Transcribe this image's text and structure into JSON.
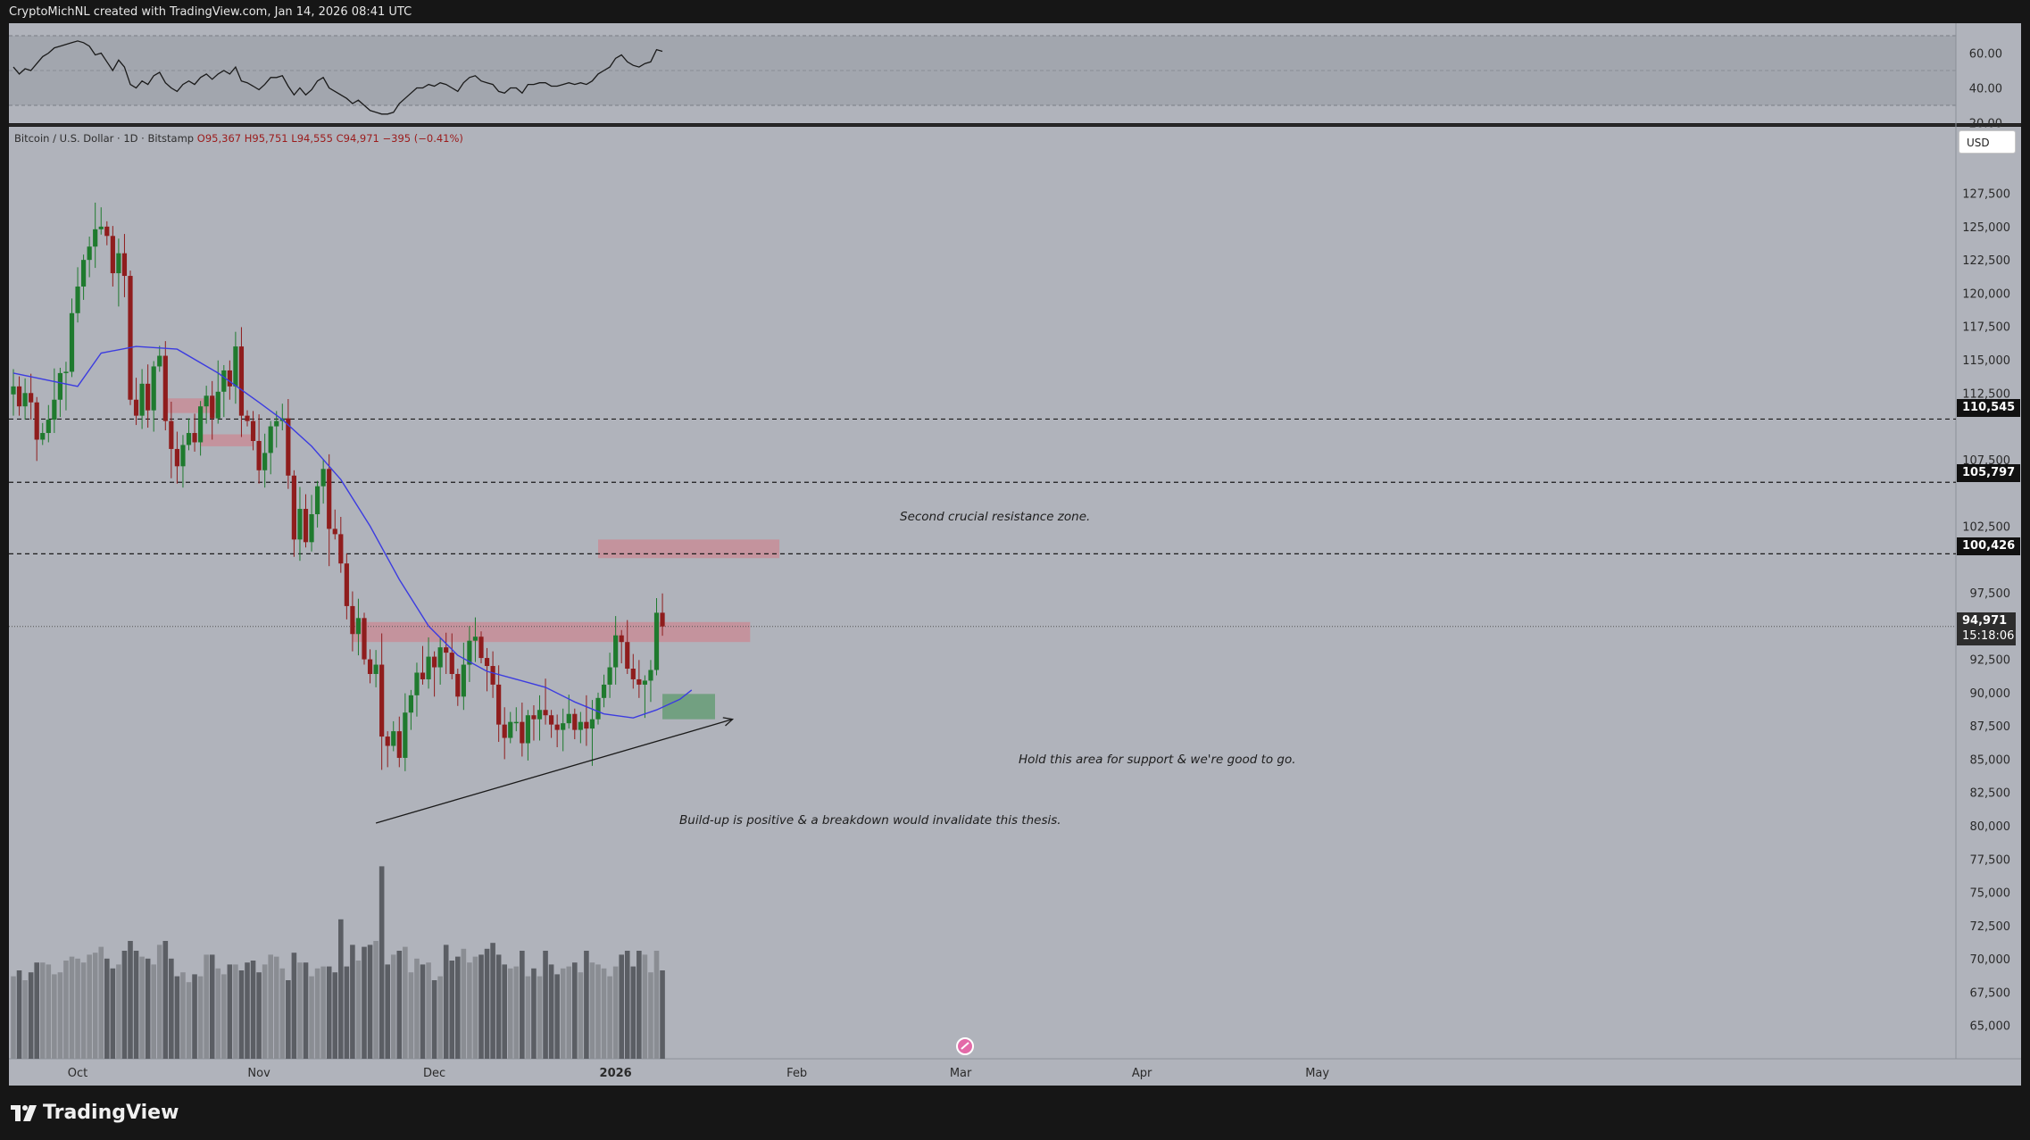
{
  "header": {
    "credit": "CryptoMichNL created with TradingView.com, Jan 14, 2026 08:41 UTC"
  },
  "legend": {
    "symbol": "Bitcoin / U.S. Dollar · 1D · Bitstamp",
    "open": "O95,367",
    "high": "H95,751",
    "low": "L94,555",
    "close": "C94,971",
    "change": "−395 (−0.41%)"
  },
  "currency": "USD",
  "branding": {
    "name": "TradingView"
  },
  "annotations": {
    "resistance": "Second crucial resistance zone.",
    "support": "Hold this area for support & we're good to go.",
    "thesis": "Build-up is positive & a breakdown would invalidate this thesis."
  },
  "price_tags": {
    "last_price": "94,971",
    "countdown": "15:18:06",
    "line1": "110,545",
    "line2": "105,797",
    "line3": "100,426"
  },
  "colors": {
    "bull": "#1f7a2e",
    "bear": "#8f1d1d",
    "ma": "#3c3ce0",
    "zone": "#c98b96",
    "support_zone": "#5e9a6e",
    "pane_bg": "#b0b3bb"
  },
  "chart_data": {
    "type": "candlestick",
    "title": "",
    "ylabel": "",
    "ylim": [
      62500,
      132500
    ],
    "price_ticks": [
      65000,
      67500,
      70000,
      72500,
      75000,
      77500,
      80000,
      82500,
      85000,
      87500,
      90000,
      92500,
      97500,
      102500,
      107500,
      112500,
      115000,
      117500,
      120000,
      122500,
      125000,
      127500
    ],
    "price_tick_labels": [
      "65,000",
      "67,500",
      "70,000",
      "72,500",
      "75,000",
      "77,500",
      "80,000",
      "82,500",
      "85,000",
      "87,500",
      "90,000",
      "92,500",
      "97,500",
      "102,500",
      "107,500",
      "112,500",
      "115,000",
      "117,500",
      "120,000",
      "122,500",
      "125,000",
      "127,500"
    ],
    "x_labels": [
      "Oct",
      "Nov",
      "Dec",
      "2026",
      "Feb",
      "Mar",
      "Apr",
      "May"
    ],
    "x_label_dates": [
      "2025-10-01",
      "2025-11-01",
      "2025-12-01",
      "2026-01-01",
      "2026-02-01",
      "2026-03-01",
      "2026-04-01",
      "2026-05-01"
    ],
    "close_series": {
      "start_date": "2025-09-20",
      "values": [
        113000,
        111500,
        112500,
        111800,
        109000,
        109500,
        110500,
        112000,
        114000,
        114100,
        118500,
        120500,
        122500,
        123500,
        124800,
        125000,
        124300,
        121500,
        123000,
        121300,
        112000,
        110800,
        113200,
        111200,
        114500,
        115300,
        110400,
        108300,
        107000,
        108600,
        109500,
        108800,
        111500,
        112300,
        110600,
        112600,
        114200,
        113000,
        116000,
        110800,
        110400,
        108900,
        106700,
        108000,
        110000,
        110400,
        110600,
        106300,
        101500,
        103800,
        101300,
        103400,
        105500,
        106800,
        102300,
        101900,
        99700,
        96500,
        94400,
        95600,
        92500,
        91400,
        92100,
        86700,
        86000,
        87100,
        85100,
        88500,
        89800,
        91500,
        91000,
        92700,
        91900,
        93400,
        93000,
        91400,
        89700,
        92100,
        93900,
        94200,
        92600,
        92000,
        90600,
        87600,
        86600,
        87800,
        87800,
        86200,
        88300,
        88000,
        88700,
        88300,
        87600,
        87200,
        87700,
        88400,
        87200,
        87800,
        87300,
        88000,
        89600,
        90600,
        91900,
        94300,
        93800,
        91800,
        91000,
        90600,
        90900,
        91700,
        96000,
        94971
      ]
    },
    "volume_series": {
      "values": [
        42,
        45,
        40,
        44,
        49,
        49,
        48,
        43,
        44,
        50,
        52,
        51,
        49,
        53,
        54,
        57,
        51,
        46,
        48,
        55,
        60,
        55,
        52,
        51,
        48,
        58,
        60,
        51,
        42,
        44,
        39,
        43,
        42,
        53,
        53,
        46,
        43,
        48,
        48,
        45,
        49,
        50,
        44,
        48,
        53,
        52,
        46,
        40,
        54,
        49,
        49,
        42,
        46,
        47,
        47,
        44,
        71,
        47,
        58,
        50,
        57,
        58,
        60,
        98,
        48,
        53,
        55,
        57,
        44,
        51,
        48,
        49,
        40,
        42,
        58,
        50,
        52,
        56,
        49,
        52,
        53,
        56,
        59,
        53,
        48,
        46,
        47,
        55,
        42,
        46,
        42,
        55,
        48,
        43,
        46,
        47,
        49,
        44,
        55,
        49,
        48,
        46,
        42,
        47,
        53,
        55,
        47,
        55,
        53,
        44,
        55,
        45
      ]
    },
    "moving_average": [
      {
        "date": "2025-09-20",
        "value": 114000
      },
      {
        "date": "2025-10-01",
        "value": 113000
      },
      {
        "date": "2025-10-05",
        "value": 115500
      },
      {
        "date": "2025-10-11",
        "value": 116000
      },
      {
        "date": "2025-10-18",
        "value": 115800
      },
      {
        "date": "2025-10-25",
        "value": 114000
      },
      {
        "date": "2025-11-01",
        "value": 111800
      },
      {
        "date": "2025-11-05",
        "value": 110500
      },
      {
        "date": "2025-11-10",
        "value": 108500
      },
      {
        "date": "2025-11-15",
        "value": 106000
      },
      {
        "date": "2025-11-20",
        "value": 102500
      },
      {
        "date": "2025-11-25",
        "value": 98500
      },
      {
        "date": "2025-11-30",
        "value": 95000
      },
      {
        "date": "2025-12-05",
        "value": 92800
      },
      {
        "date": "2025-12-10",
        "value": 91600
      },
      {
        "date": "2025-12-15",
        "value": 91000
      },
      {
        "date": "2025-12-20",
        "value": 90400
      },
      {
        "date": "2025-12-25",
        "value": 89300
      },
      {
        "date": "2025-12-30",
        "value": 88400
      },
      {
        "date": "2026-01-04",
        "value": 88100
      },
      {
        "date": "2026-01-08",
        "value": 88700
      },
      {
        "date": "2026-01-12",
        "value": 89500
      },
      {
        "date": "2026-01-14",
        "value": 90200
      }
    ],
    "horizontal_lines": [
      110545,
      105797,
      100426
    ],
    "last_price": 94971,
    "zones": [
      {
        "from": "2025-10-16",
        "to": "2025-10-25",
        "low": 111000,
        "high": 112100
      },
      {
        "from": "2025-10-22",
        "to": "2025-10-31",
        "low": 108500,
        "high": 109400
      },
      {
        "from": "2025-11-17",
        "to": "2026-01-24",
        "low": 93800,
        "high": 95300
      },
      {
        "from": "2025-12-29",
        "to": "2026-01-29",
        "low": 100100,
        "high": 101500
      },
      {
        "from": "2026-01-09",
        "to": "2026-01-18",
        "low": 88000,
        "high": 89900
      }
    ],
    "trendline": {
      "from_date": "2025-11-21",
      "from_value": 80200,
      "to_date": "2026-01-21",
      "to_value": 88000
    },
    "rsi": {
      "ylim": [
        20,
        70
      ],
      "ticks": [
        60,
        40,
        20
      ],
      "tick_labels": [
        "60.00",
        "40.00",
        "20.00"
      ],
      "upper_band": 70,
      "lower_band": 30,
      "values": [
        52,
        48,
        51,
        50,
        54,
        58,
        60,
        63,
        64,
        65,
        66,
        67,
        66,
        64,
        59,
        60,
        55,
        50,
        56,
        52,
        42,
        40,
        44,
        42,
        47,
        49,
        43,
        40,
        38,
        42,
        44,
        42,
        46,
        48,
        45,
        48,
        50,
        48,
        52,
        44,
        43,
        41,
        39,
        42,
        46,
        46,
        47,
        41,
        36,
        40,
        36,
        39,
        44,
        46,
        40,
        38,
        36,
        34,
        31,
        33,
        30,
        27,
        26,
        25,
        25,
        26,
        31,
        34,
        37,
        40,
        40,
        42,
        41,
        43,
        42,
        40,
        38,
        43,
        46,
        47,
        44,
        43,
        42,
        38,
        37,
        40,
        40,
        37,
        42,
        42,
        43,
        43,
        41,
        41,
        42,
        43,
        42,
        43,
        42,
        44,
        48,
        50,
        52,
        57,
        59,
        55,
        53,
        52,
        54,
        55,
        62,
        61
      ]
    }
  }
}
